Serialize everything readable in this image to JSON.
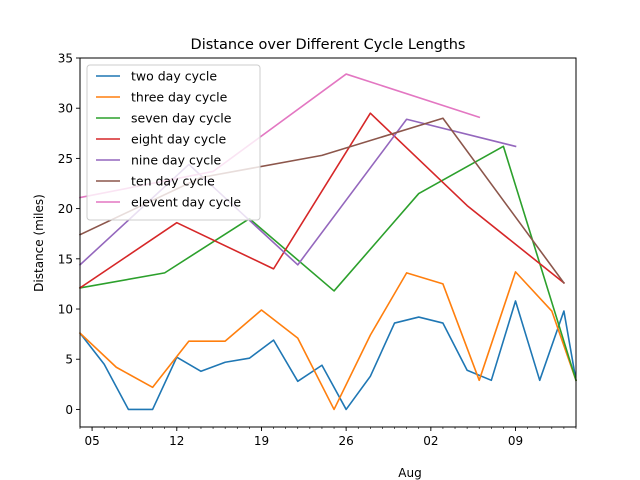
{
  "chart_data": {
    "type": "line",
    "title": "Distance over Different Cycle Lengths",
    "xlabel": "Aug",
    "ylabel": "Distance (miles)",
    "ylim": [
      -1.75,
      35
    ],
    "xlim": [
      "2024-07-04",
      "2024-08-14"
    ],
    "x_ticks": [
      {
        "date": "2024-07-05",
        "label": "05"
      },
      {
        "date": "2024-07-12",
        "label": "12"
      },
      {
        "date": "2024-07-19",
        "label": "19"
      },
      {
        "date": "2024-07-26",
        "label": "26"
      },
      {
        "date": "2024-08-02",
        "label": "02"
      },
      {
        "date": "2024-08-09",
        "label": "09"
      }
    ],
    "y_ticks": [
      0,
      5,
      10,
      15,
      20,
      25,
      30,
      35
    ],
    "grid": false,
    "legend": "upper left",
    "series": [
      {
        "name": "two day cycle",
        "color": "#1f77b4",
        "points": [
          [
            "2024-07-04",
            7.6
          ],
          [
            "2024-07-06",
            4.5
          ],
          [
            "2024-07-08",
            0.0
          ],
          [
            "2024-07-10",
            0.0
          ],
          [
            "2024-07-12",
            5.2
          ],
          [
            "2024-07-14",
            3.8
          ],
          [
            "2024-07-16",
            4.7
          ],
          [
            "2024-07-18",
            5.1
          ],
          [
            "2024-07-20",
            6.9
          ],
          [
            "2024-07-22",
            2.8
          ],
          [
            "2024-07-24",
            4.4
          ],
          [
            "2024-07-26",
            0.0
          ],
          [
            "2024-07-28",
            3.3
          ],
          [
            "2024-07-30",
            8.6
          ],
          [
            "2024-08-01",
            9.2
          ],
          [
            "2024-08-03",
            8.6
          ],
          [
            "2024-08-05",
            3.9
          ],
          [
            "2024-08-07",
            2.9
          ],
          [
            "2024-08-09",
            10.8
          ],
          [
            "2024-08-11",
            2.9
          ],
          [
            "2024-08-13",
            9.8
          ],
          [
            "2024-08-14",
            2.9
          ]
        ]
      },
      {
        "name": "three day cycle",
        "color": "#ff7f0e",
        "points": [
          [
            "2024-07-04",
            7.6
          ],
          [
            "2024-07-07",
            4.2
          ],
          [
            "2024-07-10",
            2.2
          ],
          [
            "2024-07-13",
            6.8
          ],
          [
            "2024-07-16",
            6.8
          ],
          [
            "2024-07-19",
            9.9
          ],
          [
            "2024-07-22",
            7.1
          ],
          [
            "2024-07-25",
            0.0
          ],
          [
            "2024-07-28",
            7.4
          ],
          [
            "2024-07-31",
            13.6
          ],
          [
            "2024-08-03",
            12.5
          ],
          [
            "2024-08-06",
            2.9
          ],
          [
            "2024-08-09",
            13.7
          ],
          [
            "2024-08-12",
            9.8
          ],
          [
            "2024-08-14",
            2.9
          ]
        ]
      },
      {
        "name": "seven day cycle",
        "color": "#2ca02c",
        "points": [
          [
            "2024-07-04",
            12.1
          ],
          [
            "2024-07-11",
            13.6
          ],
          [
            "2024-07-18",
            19.0
          ],
          [
            "2024-07-25",
            11.8
          ],
          [
            "2024-08-01",
            21.5
          ],
          [
            "2024-08-08",
            26.2
          ],
          [
            "2024-08-14",
            2.9
          ]
        ]
      },
      {
        "name": "eight day cycle",
        "color": "#d62728",
        "points": [
          [
            "2024-07-04",
            12.1
          ],
          [
            "2024-07-12",
            18.6
          ],
          [
            "2024-07-20",
            14.0
          ],
          [
            "2024-07-28",
            29.5
          ],
          [
            "2024-08-05",
            20.3
          ],
          [
            "2024-08-13",
            12.6
          ]
        ]
      },
      {
        "name": "nine day cycle",
        "color": "#9467bd",
        "points": [
          [
            "2024-07-04",
            14.4
          ],
          [
            "2024-07-13",
            24.4
          ],
          [
            "2024-07-22",
            14.4
          ],
          [
            "2024-07-31",
            28.9
          ],
          [
            "2024-08-09",
            26.2
          ]
        ]
      },
      {
        "name": "ten day cycle",
        "color": "#8c564b",
        "points": [
          [
            "2024-07-04",
            17.4
          ],
          [
            "2024-07-14",
            23.1
          ],
          [
            "2024-07-24",
            25.3
          ],
          [
            "2024-08-03",
            29.0
          ],
          [
            "2024-08-13",
            12.6
          ]
        ]
      },
      {
        "name": "elevent day cycle",
        "color": "#e377c2",
        "points": [
          [
            "2024-07-04",
            21.1
          ],
          [
            "2024-07-15",
            23.7
          ],
          [
            "2024-07-26",
            33.4
          ],
          [
            "2024-08-06",
            29.1
          ]
        ]
      }
    ]
  }
}
